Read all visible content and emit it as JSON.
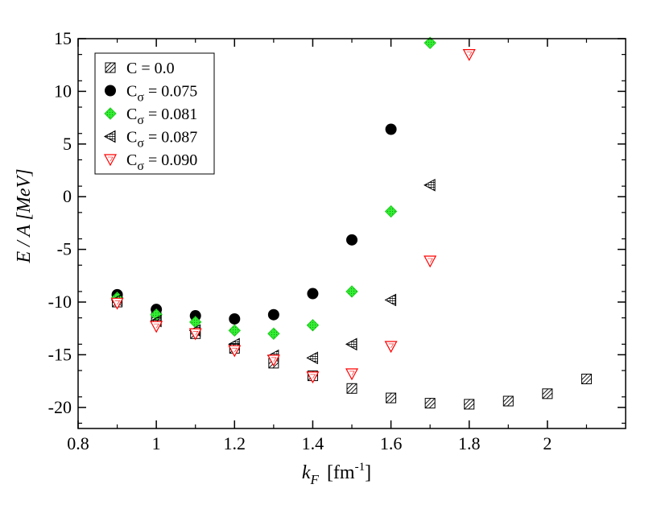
{
  "chart_data": {
    "type": "scatter",
    "title": "",
    "xlabel": {
      "main": "k",
      "sub": "F",
      "unit_prefix": "[fm",
      "unit_sup": "-1",
      "unit_suffix": "]"
    },
    "ylabel": "E / A  [MeV]",
    "xlim": [
      0.8,
      2.2
    ],
    "ylim": [
      -22,
      15
    ],
    "x_ticks": [
      0.8,
      1,
      1.2,
      1.4,
      1.6,
      1.8,
      2
    ],
    "x_tick_labels": [
      "0.8",
      "1",
      "1.2",
      "1.4",
      "1.6",
      "1.8",
      "2"
    ],
    "y_ticks": [
      -20,
      -15,
      -10,
      -5,
      0,
      5,
      10,
      15
    ],
    "y_tick_labels": [
      "-20",
      "-15",
      "-10",
      "-5",
      "0",
      "5",
      "10",
      "15"
    ],
    "legend_position": "top-left",
    "series": [
      {
        "name": "C = 0.0",
        "label_main": "C = 0.0",
        "label_sub": "",
        "label_value": "",
        "marker": "square-hatched",
        "color": "#000000",
        "x": [
          0.9,
          1.0,
          1.1,
          1.2,
          1.3,
          1.4,
          1.5,
          1.6,
          1.7,
          1.8,
          1.9,
          2.0,
          2.1
        ],
        "y": [
          -10.0,
          -11.5,
          -13.0,
          -14.4,
          -15.8,
          -17.0,
          -18.2,
          -19.1,
          -19.6,
          -19.7,
          -19.4,
          -18.7,
          -17.3
        ]
      },
      {
        "name": "Cσ = 0.075",
        "label_main": "C",
        "label_sub": "σ",
        "label_value": " = 0.075",
        "marker": "circle-filled",
        "color": "#000000",
        "x": [
          0.9,
          1.0,
          1.1,
          1.2,
          1.3,
          1.4,
          1.5,
          1.6
        ],
        "y": [
          -9.3,
          -10.7,
          -11.3,
          -11.6,
          -11.2,
          -9.2,
          -4.1,
          6.4
        ]
      },
      {
        "name": "Cσ = 0.081",
        "label_main": "C",
        "label_sub": "σ",
        "label_value": " = 0.081",
        "marker": "diamond-green",
        "color": "#33ee33",
        "x": [
          0.9,
          1.0,
          1.1,
          1.2,
          1.3,
          1.4,
          1.5,
          1.6,
          1.7
        ],
        "y": [
          -9.6,
          -11.2,
          -11.9,
          -12.7,
          -13.0,
          -12.2,
          -9.0,
          -1.4,
          14.6
        ]
      },
      {
        "name": "Cσ = 0.087",
        "label_main": "C",
        "label_sub": "σ",
        "label_value": " = 0.087",
        "marker": "triangle-left-hatched",
        "color": "#000000",
        "x": [
          0.9,
          1.0,
          1.1,
          1.2,
          1.3,
          1.4,
          1.5,
          1.6,
          1.7
        ],
        "y": [
          -9.8,
          -11.8,
          -12.7,
          -14.0,
          -15.1,
          -15.3,
          -14.0,
          -9.8,
          1.1
        ]
      },
      {
        "name": "Cσ = 0.090",
        "label_main": "C",
        "label_sub": "σ",
        "label_value": " = 0.090",
        "marker": "triangle-down-open",
        "color": "#ff0000",
        "x": [
          0.9,
          1.0,
          1.1,
          1.2,
          1.3,
          1.4,
          1.5,
          1.6,
          1.7,
          1.8
        ],
        "y": [
          -10.1,
          -12.3,
          -13.0,
          -14.6,
          -15.5,
          -17.1,
          -16.8,
          -14.2,
          -6.1,
          13.5
        ]
      }
    ]
  }
}
